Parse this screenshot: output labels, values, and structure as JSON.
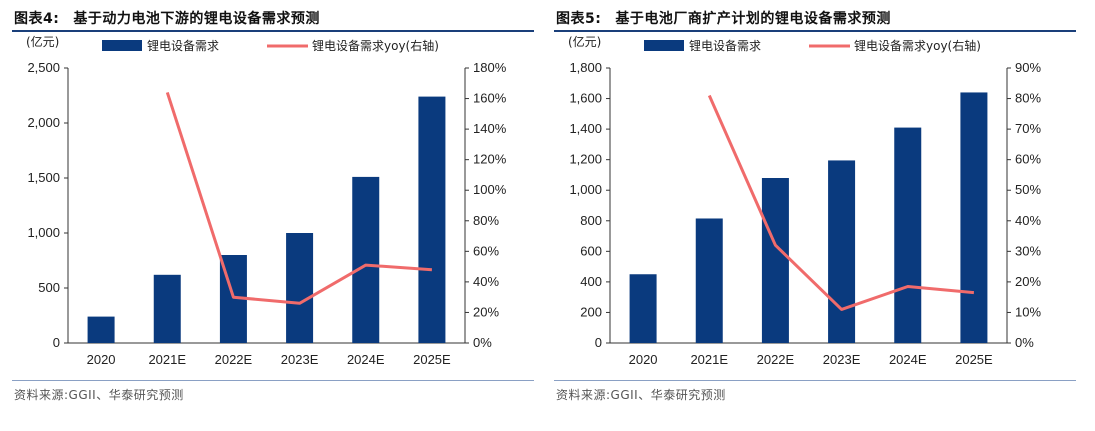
{
  "charts": [
    {
      "title_num": "图表4:",
      "title_text": "基于动力电池下游的锂电设备需求预测",
      "unit": "(亿元)",
      "source": "资料来源:GGII、华泰研究预测",
      "legend_bar": "锂电设备需求",
      "legend_line": "锂电设备需求yoy(右轴)",
      "colors": {
        "bar": "#0a3a7e",
        "line": "#f06b6b"
      },
      "chart_data": {
        "type": "bar+line",
        "categories": [
          "2020",
          "2021E",
          "2022E",
          "2023E",
          "2024E",
          "2025E"
        ],
        "series": [
          {
            "name": "锂电设备需求",
            "axis": "left",
            "type": "bar",
            "values": [
              240,
              620,
              800,
              1000,
              1510,
              2240
            ]
          },
          {
            "name": "锂电设备需求yoy(右轴)",
            "axis": "right",
            "type": "line",
            "values": [
              null,
              1.64,
              0.3,
              0.26,
              0.51,
              0.48
            ]
          }
        ],
        "ylim_left": [
          0,
          2500
        ],
        "yticks_left": [
          "0",
          "500",
          "1,000",
          "1,500",
          "2,000",
          "2,500"
        ],
        "ylim_right": [
          0,
          1.8
        ],
        "yticks_right": [
          "0%",
          "20%",
          "40%",
          "60%",
          "80%",
          "100%",
          "120%",
          "140%",
          "160%",
          "180%"
        ],
        "grid": false,
        "legend": "top"
      }
    },
    {
      "title_num": "图表5:",
      "title_text": "基于电池厂商扩产计划的锂电设备需求预测",
      "unit": "(亿元)",
      "source": "资料来源:GGII、华泰研究预测",
      "legend_bar": "锂电设备需求",
      "legend_line": "锂电设备需求yoy(右轴)",
      "colors": {
        "bar": "#0a3a7e",
        "line": "#f06b6b"
      },
      "chart_data": {
        "type": "bar+line",
        "categories": [
          "2020",
          "2021E",
          "2022E",
          "2023E",
          "2024E",
          "2025E"
        ],
        "series": [
          {
            "name": "锂电设备需求",
            "axis": "left",
            "type": "bar",
            "values": [
              450,
              815,
              1080,
              1195,
              1410,
              1640
            ]
          },
          {
            "name": "锂电设备需求yoy(右轴)",
            "axis": "right",
            "type": "line",
            "values": [
              null,
              0.81,
              0.32,
              0.11,
              0.185,
              0.165
            ]
          }
        ],
        "ylim_left": [
          0,
          1800
        ],
        "yticks_left": [
          "0",
          "200",
          "400",
          "600",
          "800",
          "1,000",
          "1,200",
          "1,400",
          "1,600",
          "1,800"
        ],
        "ylim_right": [
          0,
          0.9
        ],
        "yticks_right": [
          "0%",
          "10%",
          "20%",
          "30%",
          "40%",
          "50%",
          "60%",
          "70%",
          "80%",
          "90%"
        ],
        "grid": false,
        "legend": "top"
      }
    }
  ]
}
